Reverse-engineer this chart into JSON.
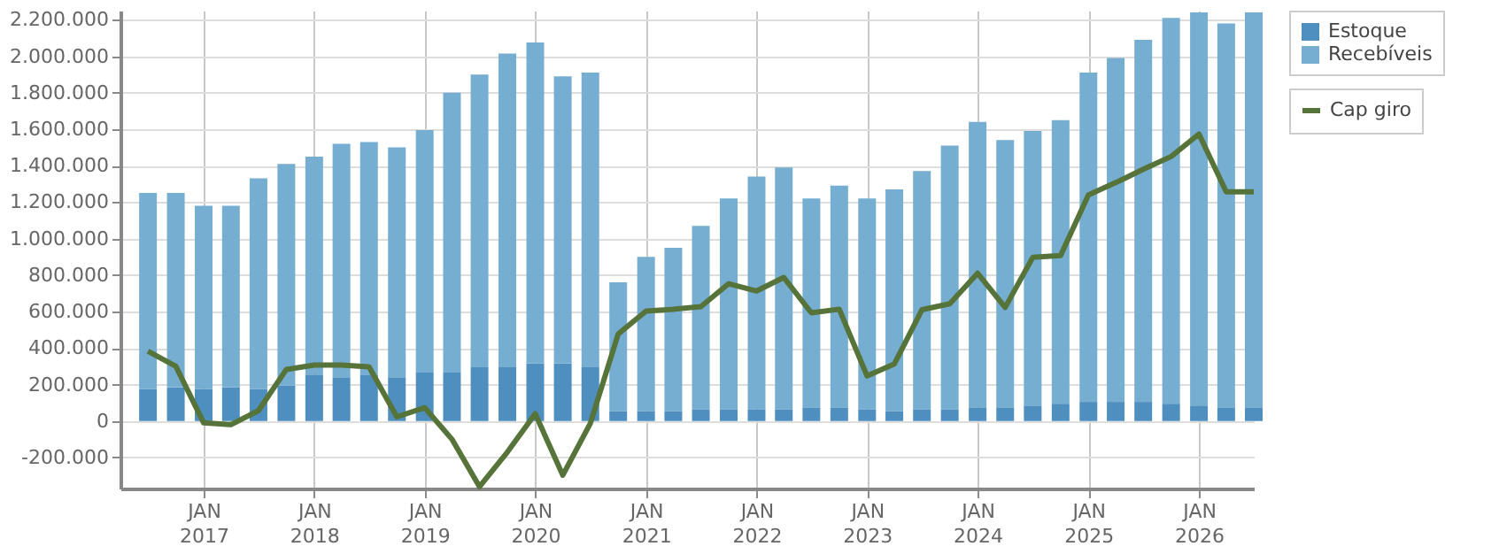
{
  "chart_data": {
    "type": "bar",
    "stacked": true,
    "x": [
      "2016-07",
      "2016-10",
      "2017-01",
      "2017-04",
      "2017-07",
      "2017-10",
      "2018-01",
      "2018-04",
      "2018-07",
      "2018-10",
      "2019-01",
      "2019-04",
      "2019-07",
      "2019-10",
      "2020-01",
      "2020-04",
      "2020-07",
      "2020-10",
      "2021-01",
      "2021-04",
      "2021-07",
      "2021-10",
      "2022-01",
      "2022-04",
      "2022-07",
      "2022-10",
      "2023-01",
      "2023-04",
      "2023-07",
      "2023-10",
      "2024-01",
      "2024-04",
      "2024-07",
      "2024-10",
      "2025-01",
      "2025-04",
      "2025-07",
      "2025-10",
      "2026-01",
      "2026-04",
      "2026-07"
    ],
    "series": [
      {
        "name": "Estoque",
        "color": "#4f8fbf",
        "values": [
          175000,
          185000,
          175000,
          185000,
          175000,
          195000,
          255000,
          240000,
          255000,
          240000,
          265000,
          265000,
          295000,
          295000,
          315000,
          315000,
          295000,
          55000,
          55000,
          55000,
          65000,
          65000,
          65000,
          65000,
          75000,
          75000,
          65000,
          55000,
          65000,
          65000,
          75000,
          75000,
          85000,
          95000,
          105000,
          105000,
          105000,
          95000,
          85000,
          75000,
          75000
        ]
      },
      {
        "name": "Recebíveis",
        "color": "#76aed1",
        "values": [
          1075000,
          1065000,
          1005000,
          995000,
          1155000,
          1215000,
          1195000,
          1280000,
          1275000,
          1260000,
          1330000,
          1535000,
          1605000,
          1720000,
          1760000,
          1575000,
          1615000,
          705000,
          845000,
          895000,
          1005000,
          1155000,
          1275000,
          1325000,
          1145000,
          1215000,
          1155000,
          1215000,
          1305000,
          1445000,
          1565000,
          1465000,
          1505000,
          1555000,
          1805000,
          1885000,
          1985000,
          2115000,
          2155000,
          2105000,
          2165000
        ]
      },
      {
        "name": "Cap giro",
        "type": "line",
        "color": "#56733a",
        "values": [
          383000,
          300000,
          -10000,
          -20000,
          57000,
          283000,
          307000,
          307000,
          297000,
          23000,
          73000,
          -100000,
          -360000,
          -170000,
          40000,
          -297000,
          -13000,
          477000,
          603000,
          613000,
          627000,
          753000,
          713000,
          787000,
          593000,
          613000,
          247000,
          313000,
          610000,
          643000,
          810000,
          623000,
          897000,
          907000,
          1240000,
          1307000,
          1380000,
          1450000,
          1573000,
          1257000,
          1257000
        ]
      }
    ],
    "xlim": [
      "2016-04",
      "2026-07"
    ],
    "xticks": [
      {
        "value": "2017-01",
        "label": "JAN\n2017"
      },
      {
        "value": "2018-01",
        "label": "JAN\n2018"
      },
      {
        "value": "2019-01",
        "label": "JAN\n2019"
      },
      {
        "value": "2020-01",
        "label": "JAN\n2020"
      },
      {
        "value": "2021-01",
        "label": "JAN\n2021"
      },
      {
        "value": "2022-01",
        "label": "JAN\n2022"
      },
      {
        "value": "2023-01",
        "label": "JAN\n2023"
      },
      {
        "value": "2024-01",
        "label": "JAN\n2024"
      },
      {
        "value": "2025-01",
        "label": "JAN\n2025"
      },
      {
        "value": "2026-01",
        "label": "JAN\n2026"
      }
    ],
    "ylim": [
      -370000,
      2250000
    ],
    "yticks": [
      {
        "value": -200000,
        "label": "-200.000"
      },
      0,
      {
        "value": 200000,
        "label": "200.000"
      },
      {
        "value": 400000,
        "label": "400.000"
      },
      {
        "value": 600000,
        "label": "600.000"
      },
      {
        "value": 800000,
        "label": "800.000"
      },
      {
        "value": 1000000,
        "label": "1.000.000"
      },
      {
        "value": 1200000,
        "label": "1.200.000"
      },
      {
        "value": 1400000,
        "label": "1.400.000"
      },
      {
        "value": 1600000,
        "label": "1.600.000"
      },
      {
        "value": 1800000,
        "label": "1.800.000"
      },
      {
        "value": 2000000,
        "label": "2.000.000"
      },
      {
        "value": 2200000,
        "label": "2.200.000"
      }
    ],
    "grid": true,
    "legend": "top right",
    "line_style": "solid",
    "marker": "none"
  }
}
